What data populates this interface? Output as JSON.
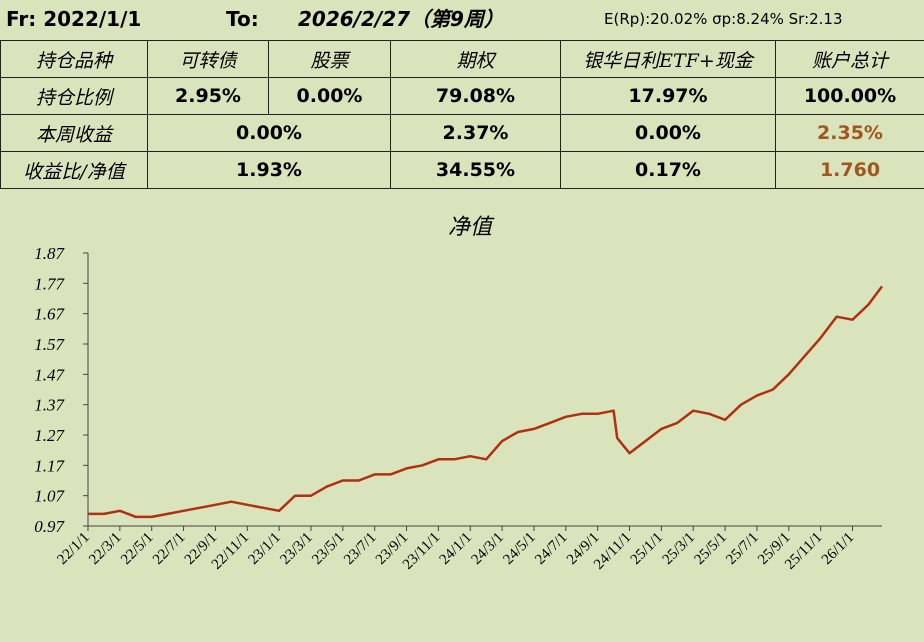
{
  "header": {
    "from": "Fr: 2022/1/1",
    "to_label": "To:",
    "to": "2026/2/27（第9周）",
    "stats": "E(Rp):20.02%  σp:8.24%  Sr:2.13"
  },
  "table": {
    "rows": [
      [
        "持仓品种",
        "可转债",
        "股票",
        "期权",
        "银华日利ETF+现金",
        "账户总计"
      ],
      [
        "持仓比例",
        "2.95%",
        "0.00%",
        "79.08%",
        "17.97%",
        "100.00%"
      ],
      [
        "本周收益",
        "0.00%",
        "2.37%",
        "0.00%",
        "2.35%"
      ],
      [
        "收益比/净值",
        "1.93%",
        "34.55%",
        "0.17%",
        "1.760"
      ]
    ]
  },
  "chart_data": {
    "type": "line",
    "title": "净值",
    "x": [
      "22/1/1",
      "22/2/1",
      "22/3/1",
      "22/4/1",
      "22/5/1",
      "22/6/1",
      "22/7/1",
      "22/8/1",
      "22/9/1",
      "22/10/1",
      "22/11/1",
      "22/12/1",
      "23/1/1",
      "23/2/1",
      "23/3/1",
      "23/4/1",
      "23/5/1",
      "23/6/1",
      "23/7/1",
      "23/8/1",
      "23/9/1",
      "23/10/1",
      "23/11/1",
      "23/12/1",
      "24/1/1",
      "24/2/1",
      "24/3/1",
      "24/4/1",
      "24/5/1",
      "24/6/1",
      "24/7/1",
      "24/8/1",
      "24/9/1",
      "24/10/1",
      "24/10/8",
      "24/11/1",
      "24/12/1",
      "25/1/1",
      "25/2/1",
      "25/3/1",
      "25/4/1",
      "25/5/1",
      "25/6/1",
      "25/7/1",
      "25/8/1",
      "25/9/1",
      "25/10/1",
      "25/11/1",
      "25/12/1",
      "26/1/1",
      "26/2/1",
      "26/2/27"
    ],
    "series": [
      {
        "name": "净值",
        "color": "#b0300f",
        "values": [
          1.01,
          1.01,
          1.02,
          1.0,
          1.0,
          1.01,
          1.02,
          1.03,
          1.04,
          1.05,
          1.04,
          1.03,
          1.02,
          1.07,
          1.07,
          1.1,
          1.12,
          1.12,
          1.14,
          1.14,
          1.16,
          1.17,
          1.19,
          1.19,
          1.2,
          1.19,
          1.25,
          1.28,
          1.29,
          1.31,
          1.33,
          1.34,
          1.34,
          1.35,
          1.26,
          1.21,
          1.25,
          1.29,
          1.31,
          1.35,
          1.34,
          1.32,
          1.37,
          1.4,
          1.42,
          1.47,
          1.53,
          1.59,
          1.66,
          1.65,
          1.7,
          1.76
        ]
      }
    ],
    "xlim": [
      "22/1/1",
      "26/2/27"
    ],
    "xticks": [
      "22/1/1",
      "22/3/1",
      "22/5/1",
      "22/7/1",
      "22/9/1",
      "22/11/1",
      "23/1/1",
      "23/3/1",
      "23/5/1",
      "23/7/1",
      "23/9/1",
      "23/11/1",
      "24/1/1",
      "24/3/1",
      "24/5/1",
      "24/7/1",
      "24/9/1",
      "24/11/1",
      "25/1/1",
      "25/3/1",
      "25/5/1",
      "25/7/1",
      "25/9/1",
      "25/11/1",
      "26/1/1"
    ],
    "ylim": [
      0.97,
      1.87
    ],
    "yticks": [
      0.97,
      1.07,
      1.17,
      1.27,
      1.37,
      1.47,
      1.57,
      1.67,
      1.77,
      1.87
    ]
  }
}
